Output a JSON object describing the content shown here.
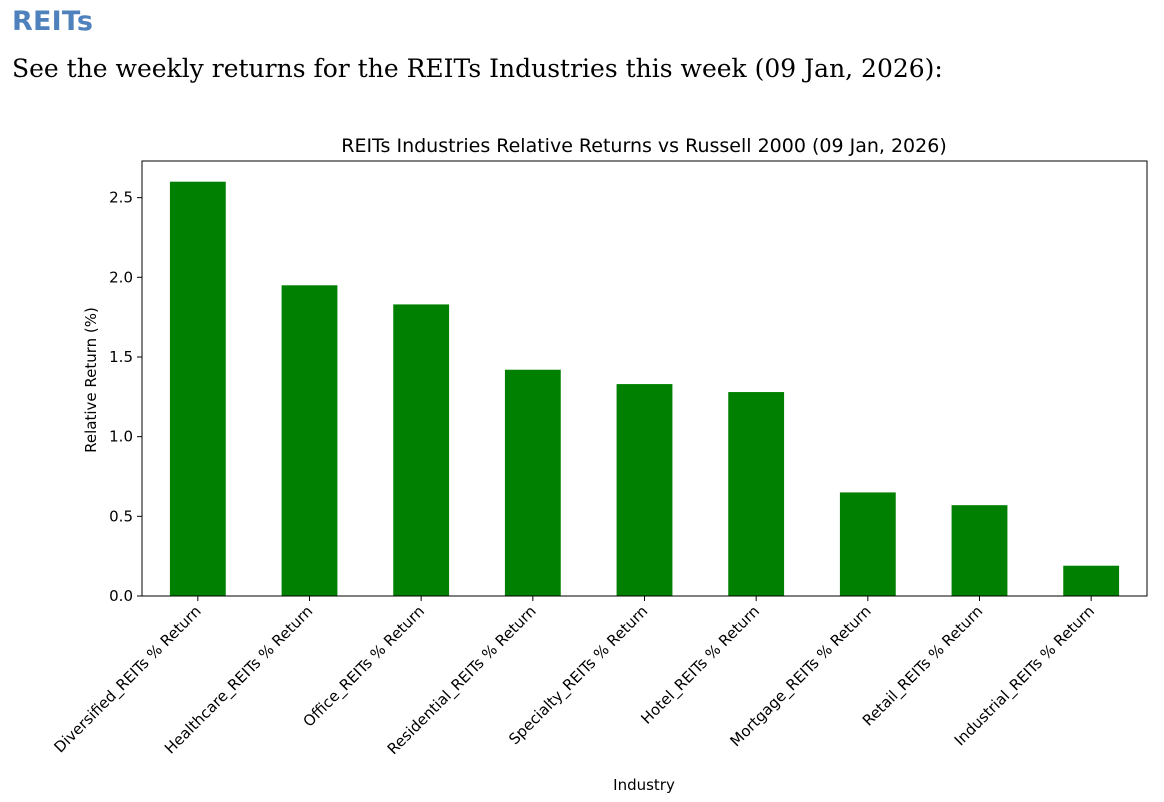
{
  "document": {
    "heading": "REITs",
    "intro": "See the weekly returns for the REITs Industries this week (09 Jan, 2026):"
  },
  "chart_data": {
    "type": "bar",
    "title": "REITs Industries Relative Returns vs Russell 2000 (09 Jan, 2026)",
    "xlabel": "Industry",
    "ylabel": "Relative Return (%)",
    "categories": [
      "Diversified_REITs % Return",
      "Healthcare_REITs % Return",
      "Office_REITs % Return",
      "Residential_REITs % Return",
      "Specialty_REITs % Return",
      "Hotel_REITs % Return",
      "Mortgage_REITs % Return",
      "Retail_REITs % Return",
      "Industrial_REITs % Return"
    ],
    "values": [
      2.6,
      1.95,
      1.83,
      1.42,
      1.33,
      1.28,
      0.65,
      0.57,
      0.19
    ],
    "ylim": [
      0,
      2.73
    ],
    "yticks": [
      0.0,
      0.5,
      1.0,
      1.5,
      2.0,
      2.5
    ],
    "ytick_labels": [
      "0.0",
      "0.5",
      "1.0",
      "1.5",
      "2.0",
      "2.5"
    ],
    "bar_color": "#008000",
    "grid": false,
    "legend": "none"
  }
}
